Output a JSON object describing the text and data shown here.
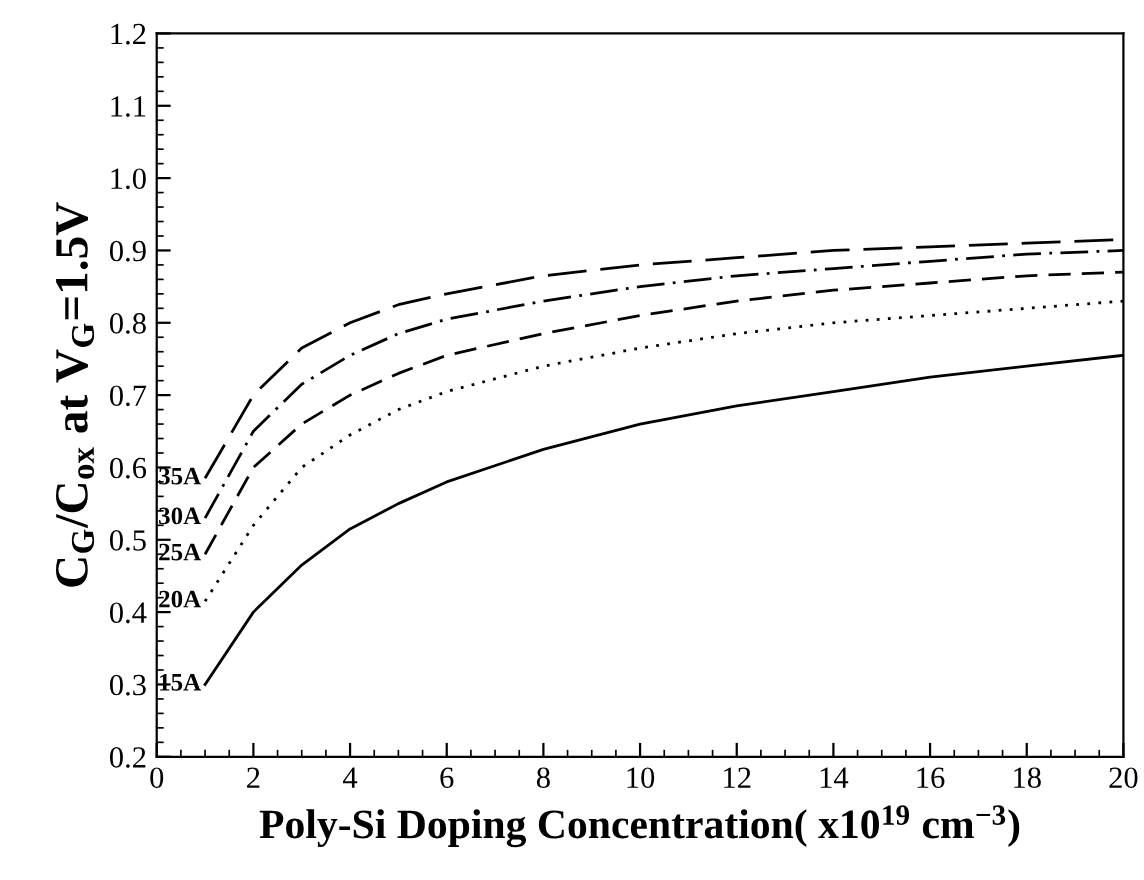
{
  "chart_data": {
    "type": "line",
    "xlabel": "Poly-Si Doping Concentration( x10$^{19}$ cm$^{−3}$)",
    "ylabel": "C$_{G}$/C$_{ox}$ at V$_{G}$=1.5V",
    "x": [
      1,
      2,
      3,
      4,
      5,
      6,
      8,
      10,
      12,
      14,
      16,
      18,
      20
    ],
    "xlim": [
      0,
      20
    ],
    "xticks": [
      0,
      2,
      4,
      6,
      8,
      10,
      12,
      14,
      16,
      18,
      20
    ],
    "ylim": [
      0.2,
      1.2
    ],
    "yticks": [
      {
        "value": 0.2,
        "label": "0.2"
      },
      {
        "value": 0.3,
        "label": "0.3"
      },
      {
        "value": 0.4,
        "label": "0.4"
      },
      {
        "value": 0.5,
        "label": "0.5"
      },
      {
        "value": 0.6,
        "label": "0.6"
      },
      {
        "value": 0.7,
        "label": "0.7"
      },
      {
        "value": 0.8,
        "label": "0.8"
      },
      {
        "value": 0.9,
        "label": "0.9"
      },
      {
        "value": 1.0,
        "label": "1.0"
      },
      {
        "value": 1.1,
        "label": "1.1"
      },
      {
        "value": 1.2,
        "label": "1.2"
      }
    ],
    "grid": false,
    "legend": false,
    "marker": "none",
    "series": [
      {
        "name": "15A",
        "color": "#000000",
        "line_style": "solid",
        "values": [
          0.3,
          0.4,
          0.465,
          0.515,
          0.55,
          0.58,
          0.625,
          0.66,
          0.685,
          0.705,
          0.725,
          0.74,
          0.755
        ]
      },
      {
        "name": "20A",
        "color": "#000000",
        "line_style": "dotted",
        "values": [
          0.415,
          0.52,
          0.6,
          0.645,
          0.68,
          0.705,
          0.74,
          0.765,
          0.785,
          0.8,
          0.81,
          0.82,
          0.83
        ]
      },
      {
        "name": "25A",
        "color": "#000000",
        "line_style": "dashed",
        "values": [
          0.48,
          0.6,
          0.66,
          0.7,
          0.73,
          0.755,
          0.785,
          0.81,
          0.83,
          0.845,
          0.855,
          0.865,
          0.87
        ]
      },
      {
        "name": "30A",
        "color": "#000000",
        "line_style": "dashdot",
        "values": [
          0.53,
          0.65,
          0.715,
          0.755,
          0.785,
          0.805,
          0.83,
          0.85,
          0.865,
          0.875,
          0.885,
          0.895,
          0.9
        ]
      },
      {
        "name": "35A",
        "color": "#000000",
        "line_style": "longdash",
        "values": [
          0.585,
          0.7,
          0.765,
          0.8,
          0.825,
          0.84,
          0.865,
          0.88,
          0.89,
          0.9,
          0.905,
          0.91,
          0.915
        ]
      }
    ]
  }
}
